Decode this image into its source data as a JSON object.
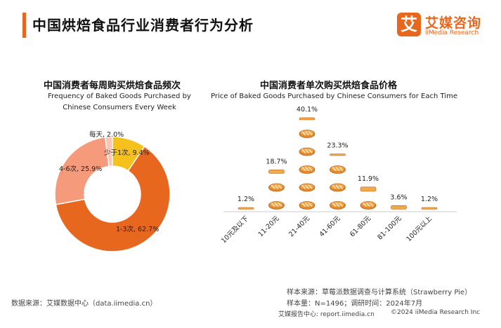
{
  "page": {
    "title": "中国烘焙食品行业消费者行为分析"
  },
  "brand": {
    "mark": "艾",
    "name_cn": "艾媒咨询",
    "name_en": "iiMedia Research",
    "accent": "#e8671e"
  },
  "chart_data": [
    {
      "type": "pie",
      "title": "中国消费者每周购买烘焙食品频次",
      "subtitle_en": [
        "Frequency of Baked Goods Purchased by",
        "Chinese Consumers Every Week"
      ],
      "slices": [
        {
          "label": "1-3次, 62.7%",
          "value": 62.7,
          "color": "#e8671e"
        },
        {
          "label": "4-6次, 25.9%",
          "value": 25.9,
          "color": "#f59a7a"
        },
        {
          "label": "每天, 2.0%",
          "value": 2.0,
          "color": "#f7c6b4"
        },
        {
          "label": "少于1次, 9.4%",
          "value": 9.4,
          "color": "#f6c11c"
        }
      ]
    },
    {
      "type": "bar",
      "title": "中国消费者单次购买烘焙食品价格",
      "subtitle_en": "Price of Baked Goods Purchased by Chinese Consumers for Each Time",
      "categories": [
        "10元及以下",
        "11-20元",
        "21-40元",
        "41-60元",
        "61-80元",
        "81-100元",
        "100元以上"
      ],
      "values": [
        1.2,
        18.7,
        40.1,
        23.3,
        11.9,
        3.6,
        1.2
      ],
      "value_labels": [
        "1.2%",
        "18.7%",
        "40.1%",
        "23.3%",
        "11.9%",
        "3.6%",
        "1.2%"
      ],
      "unit_value": 7.6,
      "icon": "bread-icon"
    }
  ],
  "footer": {
    "source": "数据来源：艾媒数据中心（data.iimedia.cn）",
    "sample_source": "样本来源：草莓派数据调查与计算系统（Strawberry Pie）",
    "sample_info": "样本量：N=1496；调研时间：2024年7月",
    "report_site": "艾媒报告中心: report.iimedia.cn",
    "copyright": "©2024 iiMedia Research Inc"
  }
}
